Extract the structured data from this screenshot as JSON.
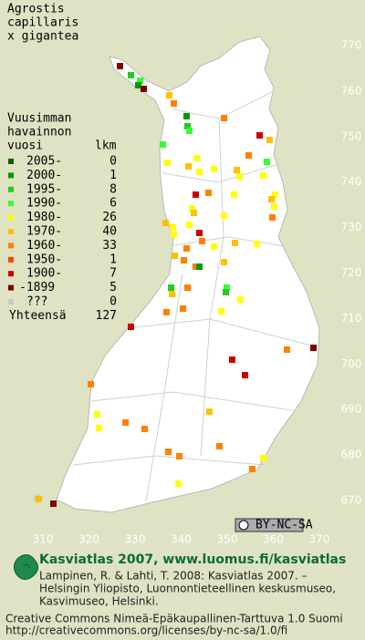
{
  "title": [
    "Agrostis",
    "capillaris",
    "x gigantea"
  ],
  "legend": {
    "header": [
      "Vuusimman",
      "havainnon",
      "vuosi"
    ],
    "count_header": "lkm",
    "rows": [
      {
        "label": "2005-",
        "count": 0,
        "color": "#006400"
      },
      {
        "label": "2000-",
        "count": 1,
        "color": "#009900"
      },
      {
        "label": "1995-",
        "count": 8,
        "color": "#22cc22"
      },
      {
        "label": "1990-",
        "count": 6,
        "color": "#33ff33"
      },
      {
        "label": "1980-",
        "count": 26,
        "color": "#ffff00"
      },
      {
        "label": "1970-",
        "count": 40,
        "color": "#ffc000"
      },
      {
        "label": "1960-",
        "count": 33,
        "color": "#ff8000"
      },
      {
        "label": "1950-",
        "count": 1,
        "color": "#ff4000"
      },
      {
        "label": "1900-",
        "count": 7,
        "color": "#cc0000"
      },
      {
        "label": "-1899",
        "count": 5,
        "color": "#800000"
      },
      {
        "label": "???",
        "count": 0,
        "color": "#c8c8c8"
      }
    ],
    "total_label": "Yhteensä",
    "total": 127
  },
  "map": {
    "xlim": [
      310,
      370
    ],
    "ylim": [
      670,
      770
    ],
    "xticks": [
      310,
      320,
      330,
      340,
      350,
      360,
      370
    ],
    "yticks": [
      670,
      680,
      690,
      700,
      710,
      720,
      730,
      740,
      750,
      760,
      770
    ]
  },
  "license_badge": "BY-NC-SA",
  "footer": {
    "heading": "Kasviatlas 2007, www.luomus.fi/kasviatlas",
    "citation": [
      "Lampinen, R. & Lahti, T. 2008: Kasviatlas 2007. –",
      "Helsingin Yliopisto, Luonnontieteellinen keskusmuseo,",
      "Kasvimuseo, Helsinki."
    ],
    "license": [
      "Creative Commons Nimeä-Epäkaupallinen-Tarttuva 1.0 Suomi",
      "http://creativecommons.org/licenses/by-nc-sa/1.0/fi"
    ]
  }
}
